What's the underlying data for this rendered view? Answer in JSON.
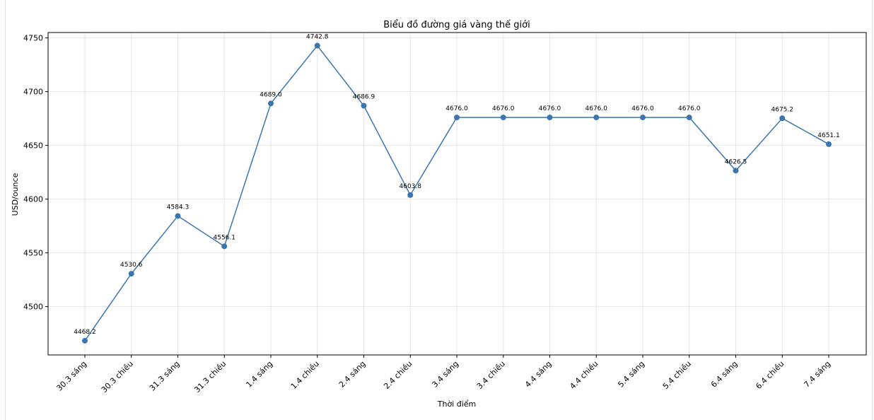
{
  "chart_data": {
    "type": "line",
    "title": "Biểu đồ đường giá vàng thế giới",
    "xlabel": "Thời điểm",
    "ylabel": "USD/ounce",
    "ylim": [
      4455,
      4755
    ],
    "yticks": [
      4500,
      4550,
      4600,
      4650,
      4700,
      4750
    ],
    "grid": true,
    "line_color": "#3b75af",
    "categories": [
      "30.3 sáng",
      "30.3 chiều",
      "31.3 sáng",
      "31.3 chiều",
      "1.4 sáng",
      "1.4 chiều",
      "2.4 sáng",
      "2.4 chiều",
      "3.4 sáng",
      "3.4 chiều",
      "4.4 sáng",
      "4.4 chiều",
      "5.4 sáng",
      "5.4 chiều",
      "6.4 sáng",
      "6.4 chiều",
      "7.4 sáng"
    ],
    "values": [
      4468.2,
      4530.6,
      4584.3,
      4556.1,
      4689.0,
      4742.8,
      4686.9,
      4603.8,
      4676.0,
      4676.0,
      4676.0,
      4676.0,
      4676.0,
      4676.0,
      4626.5,
      4675.2,
      4651.1
    ],
    "value_labels": [
      "4468.2",
      "4530.6",
      "4584.3",
      "4556.1",
      "4689.0",
      "4742.8",
      "4686.9",
      "4603.8",
      "4676.0",
      "4676.0",
      "4676.0",
      "4676.0",
      "4676.0",
      "4676.0",
      "4626.5",
      "4675.2",
      "4651.1"
    ]
  }
}
